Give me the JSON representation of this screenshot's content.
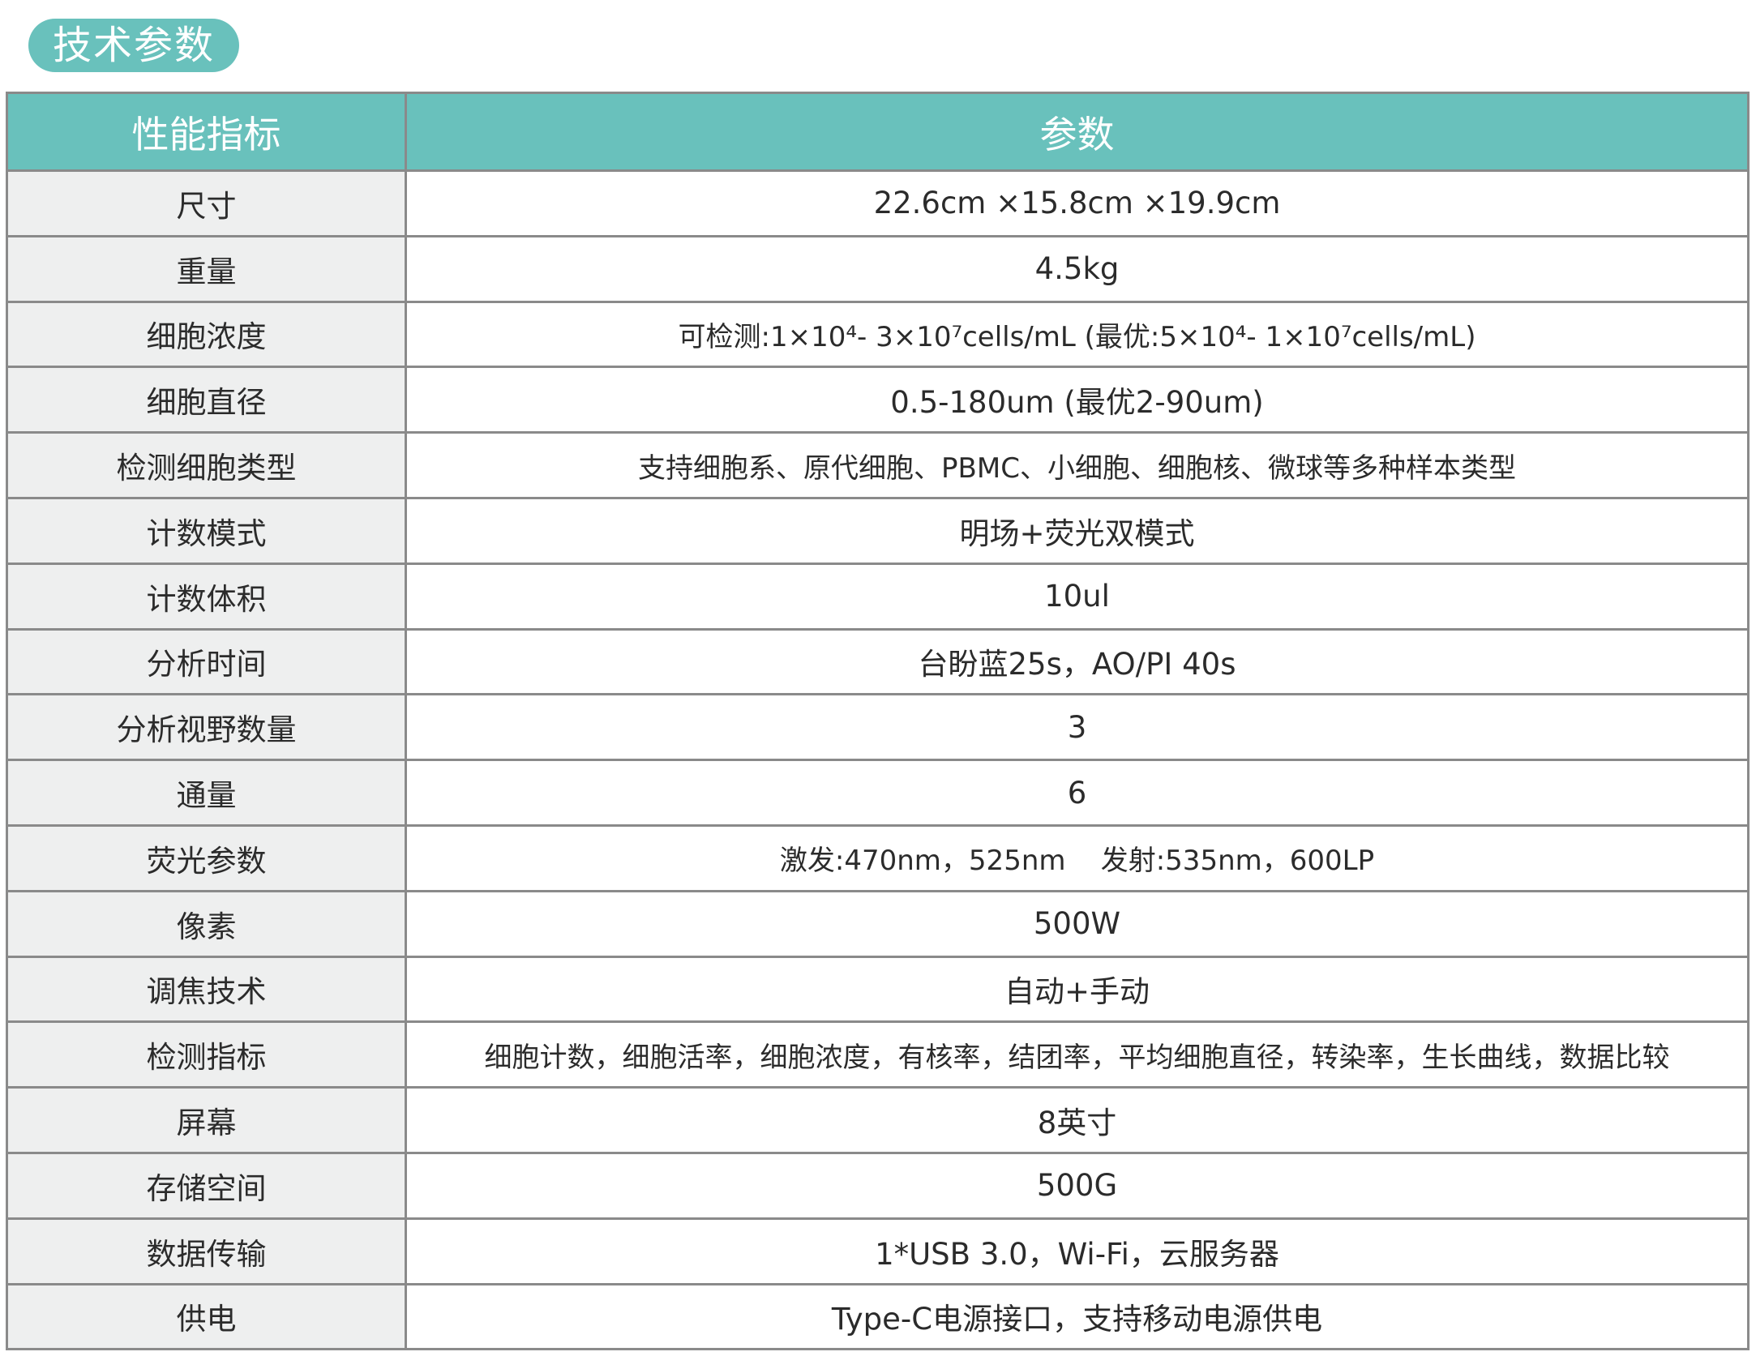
{
  "title": "技术参数",
  "colors": {
    "accent": "#69c1bc",
    "label_bg": "#eeefef",
    "border": "#8a8a8a"
  },
  "table": {
    "headers": [
      "性能指标",
      "参数"
    ],
    "rows": [
      {
        "label": "尺寸",
        "value": "22.6cm ×15.8cm ×19.9cm"
      },
      {
        "label": "重量",
        "value": "4.5kg"
      },
      {
        "label": "细胞浓度",
        "value": "可检测:1×10⁴- 3×10⁷cells/mL (最优:5×10⁴- 1×10⁷cells/mL)"
      },
      {
        "label": "细胞直径",
        "value": "0.5-180um (最优2-90um)"
      },
      {
        "label": "检测细胞类型",
        "value": "支持细胞系、原代细胞、PBMC、小细胞、细胞核、微球等多种样本类型"
      },
      {
        "label": "计数模式",
        "value": "明场+荧光双模式"
      },
      {
        "label": "计数体积",
        "value": "10ul"
      },
      {
        "label": "分析时间",
        "value": "台盼蓝25s，AO/PI 40s"
      },
      {
        "label": "分析视野数量",
        "value": "3"
      },
      {
        "label": "通量",
        "value": "6"
      },
      {
        "label": "荧光参数",
        "value": "激发:470nm，525nm    发射:535nm，600LP"
      },
      {
        "label": "像素",
        "value": "500W"
      },
      {
        "label": "调焦技术",
        "value": "自动+手动"
      },
      {
        "label": "检测指标",
        "value": "细胞计数，细胞活率，细胞浓度，有核率，结团率，平均细胞直径，转染率，生长曲线，数据比较"
      },
      {
        "label": "屏幕",
        "value": "8英寸"
      },
      {
        "label": "存储空间",
        "value": "500G"
      },
      {
        "label": "数据传输",
        "value": "1*USB 3.0，Wi-Fi，云服务器"
      },
      {
        "label": "供电",
        "value": "Type-C电源接口，支持移动电源供电"
      }
    ]
  }
}
